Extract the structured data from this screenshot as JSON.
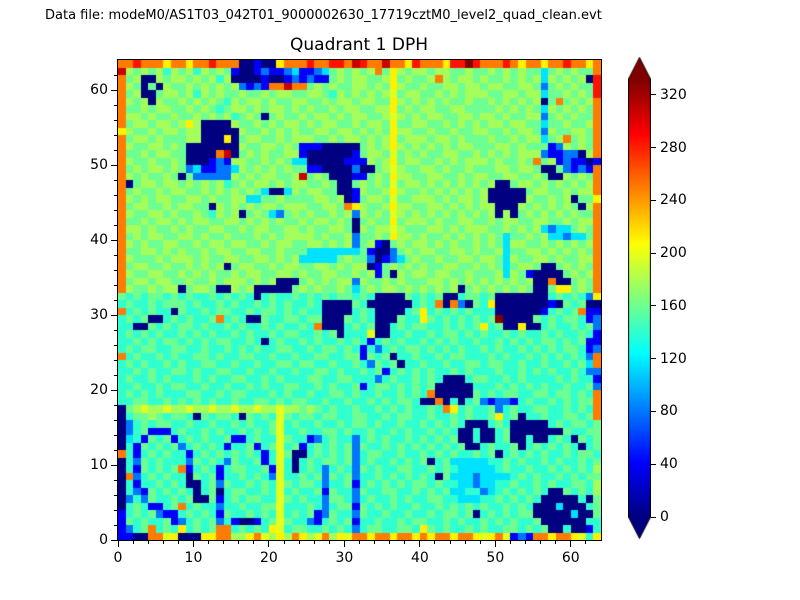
{
  "header": {
    "datafile": "Data file: modeM0/AS1T03_042T01_9000002630_17719cztM0_level2_quad_clean.evt"
  },
  "chart_data": {
    "type": "heatmap",
    "title": "Quadrant 1 DPH",
    "x_ticks": [
      0,
      10,
      20,
      30,
      40,
      50,
      60
    ],
    "y_ticks": [
      0,
      10,
      20,
      30,
      40,
      50,
      60
    ],
    "x_range": [
      0,
      64
    ],
    "y_range": [
      0,
      64
    ],
    "grid_on": false,
    "colorbar": {
      "ticks": [
        0,
        40,
        80,
        120,
        160,
        200,
        240,
        280,
        320
      ],
      "vmin": 0,
      "vmax": 332,
      "colormap": "jet",
      "extend": "both"
    },
    "value_encoding": {
      "0": 0,
      "1": 40,
      "2": 80,
      "3": 115,
      "4": 140,
      "5": 160,
      "6": 178,
      "7": 198,
      "8": 212,
      "9": 250,
      "B": 285,
      "C": 308,
      "D": 332
    },
    "grid_rows_top_to_bottom": [
      "99B999899899B99900100899 9B99BB9CB99C998B9998BBDB999B9899899B9989",
      "C656564656465651001211231123565656958656656655655656565535656559",
      "9560065665656460000100121211565665568565569656656556565636565 60B",
      "96505065565656562121 99C99565655665658655655665665665566 52565655B",
      "95600566564656556556566556654656565675665565656665566566 3556565B",
      "9656065565656546566565566556566566558656565655655656565605956569",
      "9556566556565456656566565655656655668565665566555565656536565659",
      "9665655655656564565056556566565665567656566556656656556625656559",
      "9566566568600006556565665656655656658556655656565665665535565569",
      "8655656656600000655656565566566565658665565565566556566526556659",
      "9566565556600080566556566655656656568566656656555655656635695659",
      "9655665650000000655665651110000056568656565656655566565551265659",
      "95565665500009C05656556610000001566575656556655656565666 21122069",
      "9655655650001216655656533000001116568566556565666565565956121101",
      "9565665652311223656565655110000200567655665655655566566500521219",
      "96565565052222265656655 6C5650001156586655665565665566556 50065659",
      "9056656656565645656656566556500565657566565656565600566565656569",
      "9565565665565656565300365665500165568655656565656000005665565669",
      "9656566556656556633556555566560156657556665656656000006556560558",
      "9566556566550656565665666556659865568665566565656600065656565069",
      "9655665655654656056532565655656265657656565656565606056565656559",
      "9556566565665566565656556566565056558566656556655656655665565669",
      "9665655656556655656655665655665065667655566565666556565632335659",
      "9565665566565565556565666656556255658665655656565653556563323359",
      "9656556655656656655656655665656256105656656565565653665565656569",
      "9556656565565665566556555333333351002565665566565563556656565659",
      "9655565666565566556656563333356552012356556556656653655665655669",
      "9566556556565605665565665566565660156565655665565653566500565659",
      "9655665565656556566556656556655656150656656655655563651000056569",
      "9566566556556566656560005656566265565655566565656565656009005659",
      "9655656605665006560000056565565356566565656560565656565005885659",
      "5454554545445454540454454545455454000054545004554500000004545428",
      "4544545554544545445454544540000540000004549092054800000001054500",
      "9454544054454554454554545440000454000045845454544400000014545911",
      "454500454544594540054455455000545400054485454545 45D0000545455412",
      "4400545455454454544545445490004545004545544545458450080045445452",
      "4545454454545445454454554454504447004454454554545445454454544541",
      "4454545545454554454045445454454541454544545454454454545455454511",
      "4545544554454454545445544545545414245455454545445454454545455412",
      "9454454544554544554454454455445515450445445455444545445454545429",
      "4545445454455445445445545544544542545044544544554554454454454539",
      "4454544554544554454454454455454454514545454454544454454545445422",
      "4544545444545445544545444554455444245445454000455445454444545441",
      "4454454554454454454544554454544514554545450000044454545454454452",
      "4545454445544545544454544544554544544545490000054545544554554549",
      "4455445454545445445545455445445445454554009040452122145445454559",
      "0567667667667667667667665654544544545454454984544524544554454549",
      "0455654554054554054547545545544554454554454454544584504454455459",
      "0245455445445445454457454454454554544544545454000454000004545545",
      "0245111454454544545457445445545445445454454540040045000000054455",
      "0341545145454451145447544124544245454454545450040045004004540545",
      "0415454524545414451457451454545254454545454545004544504545454045",
      "9414545441454545454147500454545245544544545454454504545454454554",
      "0425454442545425445147404545545245445454504533333445454454544545",
      "0415454591454145544517404542454254544554454543333345445445454546",
      "0924545440545144545427445452545244545454540533323333454544545455",
      "0414454540045254454547545542445145454545545443323344544545445546",
      "0421545454045045544547454451544254455445454533442345454540054546",
      "0242544545005145455447545442554245445454455443334454545400000405",
      "0454114594544244544557444542455154545445445454545445454000300045",
      "1454521145454154454547454512544254454454454554504545455000003005",
      "1545445124545241001457544214545144544545544545445454544500000044",
      "1245945484545994545487455445454245544554854544545445545450040014",
      "1100997800088996689768698679687998998998989989987897121998998748"
    ]
  }
}
